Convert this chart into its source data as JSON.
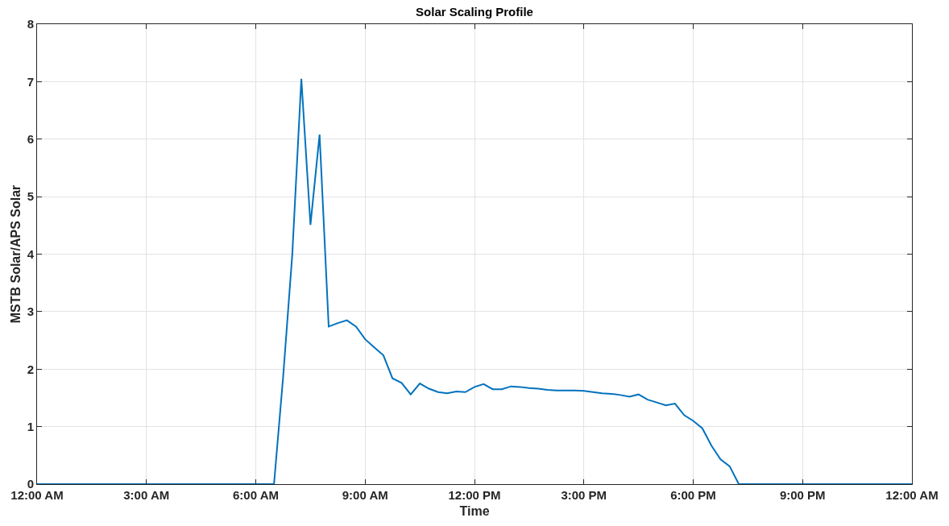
{
  "chart_data": {
    "type": "line",
    "title": "Solar Scaling Profile",
    "xlabel": "Time",
    "ylabel": "MSTB Solar/APS Solar",
    "x": [
      0,
      3,
      6,
      6.5,
      6.75,
      7,
      7.25,
      7.5,
      7.75,
      8,
      8.25,
      8.5,
      8.75,
      9,
      9.25,
      9.5,
      9.75,
      10,
      10.25,
      10.5,
      10.75,
      11,
      11.25,
      11.5,
      11.75,
      12,
      12.25,
      12.5,
      12.75,
      13,
      13.25,
      13.5,
      13.75,
      14,
      14.25,
      14.5,
      14.75,
      15,
      15.25,
      15.5,
      15.75,
      16,
      16.25,
      16.5,
      16.75,
      17,
      17.25,
      17.5,
      17.75,
      18,
      18.25,
      18.5,
      18.75,
      19,
      19.25,
      21,
      24
    ],
    "series": [
      {
        "color": "#0072bd",
        "values": [
          0,
          0,
          0,
          0,
          1.86,
          3.98,
          7.05,
          4.51,
          6.08,
          2.74,
          2.8,
          2.85,
          2.74,
          2.52,
          2.38,
          2.24,
          1.84,
          1.76,
          1.56,
          1.75,
          1.66,
          1.6,
          1.58,
          1.61,
          1.6,
          1.69,
          1.74,
          1.65,
          1.65,
          1.7,
          1.69,
          1.67,
          1.66,
          1.64,
          1.63,
          1.63,
          1.63,
          1.62,
          1.6,
          1.58,
          1.57,
          1.55,
          1.52,
          1.56,
          1.47,
          1.42,
          1.37,
          1.4,
          1.2,
          1.1,
          0.97,
          0.67,
          0.43,
          0.31,
          0,
          0,
          0
        ]
      }
    ],
    "xlim": [
      0,
      24
    ],
    "xticks": [
      {
        "value": 0,
        "label": "12:00 AM"
      },
      {
        "value": 3,
        "label": "3:00 AM"
      },
      {
        "value": 6,
        "label": "6:00 AM"
      },
      {
        "value": 9,
        "label": "9:00 AM"
      },
      {
        "value": 12,
        "label": "12:00 PM"
      },
      {
        "value": 15,
        "label": "3:00 PM"
      },
      {
        "value": 18,
        "label": "6:00 PM"
      },
      {
        "value": 21,
        "label": "9:00 PM"
      },
      {
        "value": 24,
        "label": "12:00 AM"
      }
    ],
    "ylim": [
      0,
      8
    ],
    "yticks": [
      0,
      1,
      2,
      3,
      4,
      5,
      6,
      7,
      8
    ],
    "grid": true,
    "marker": "none",
    "line_style": "solid"
  }
}
